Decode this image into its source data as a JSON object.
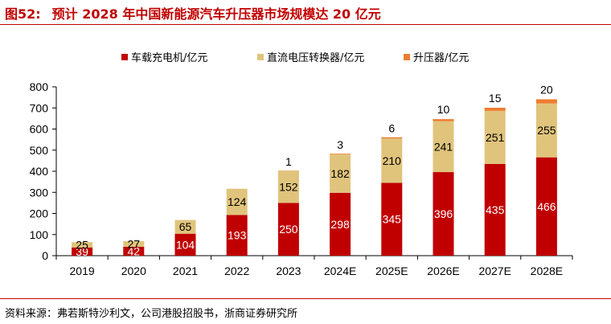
{
  "figure": {
    "number": "图52:",
    "title": "预计 2028 年中国新能源汽车升压器市场规模达 20 亿元",
    "source": "资料来源：弗若斯特沙利文，公司港股招股书，浙商证券研究所"
  },
  "colors": {
    "accent": "#c00000",
    "charger": "#c00000",
    "dcdc": "#e0c47c",
    "booster": "#ed7d31"
  },
  "chart_data": {
    "type": "bar",
    "stacked": true,
    "categories": [
      "2019",
      "2020",
      "2021",
      "2022",
      "2023",
      "2024E",
      "2025E",
      "2026E",
      "2027E",
      "2028E"
    ],
    "series": [
      {
        "name": "车载充电机/亿元",
        "values": [
          39,
          42,
          104,
          193,
          250,
          298,
          345,
          396,
          435,
          466
        ]
      },
      {
        "name": "直流电压转换器/亿元",
        "values": [
          25,
          27,
          65,
          124,
          152,
          182,
          210,
          241,
          251,
          255
        ]
      },
      {
        "name": "升压器/亿元",
        "values": [
          null,
          null,
          null,
          null,
          1,
          3,
          6,
          10,
          15,
          20
        ]
      }
    ],
    "ylim": [
      0,
      800
    ],
    "yticks": [
      "0",
      "100",
      "200",
      "300",
      "400",
      "500",
      "600",
      "700",
      "800"
    ],
    "legend_position": "top",
    "grid": false
  }
}
